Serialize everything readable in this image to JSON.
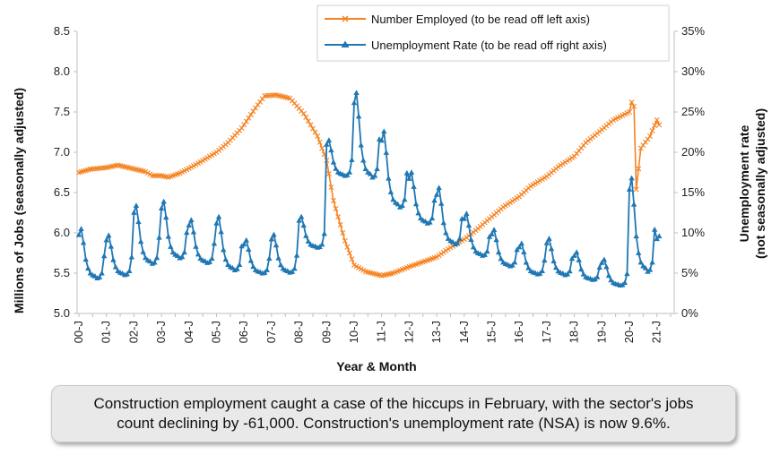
{
  "chart_data": {
    "type": "line",
    "xlabel": "Year & Month",
    "ylabel_left": "Millions of Jobs (seasonally adjusted)",
    "ylabel_right_line1": "Unemployment rate",
    "ylabel_right_line2": "(not seasonally adjusted)",
    "ylim_left": [
      5.0,
      8.5
    ],
    "ylim_right": [
      0,
      35
    ],
    "yticks_left": [
      "8.5",
      "8.0",
      "7.5",
      "7.0",
      "6.5",
      "6.0",
      "5.5",
      "5.0"
    ],
    "yticks_right": [
      "35%",
      "30%",
      "25%",
      "20%",
      "15%",
      "10%",
      "5%",
      "0%"
    ],
    "x_start": "2000-01",
    "x_end": "2021-02",
    "xtick_labels": [
      "00-J",
      "01-J",
      "02-J",
      "03-J",
      "04-J",
      "05-J",
      "06-J",
      "07-J",
      "08-J",
      "09-J",
      "10-J",
      "11-J",
      "12-J",
      "13-J",
      "14-J",
      "15-J",
      "16-J",
      "17-J",
      "18-J",
      "19-J",
      "20-J",
      "21-J"
    ],
    "grid": false,
    "legend_position": "top-center",
    "series": [
      {
        "name": "Number Employed (to be read off left axis)",
        "axis": "left",
        "color": "#F58220",
        "marker": "x",
        "anchors": [
          [
            "2000-01",
            6.75
          ],
          [
            "2000-06",
            6.79
          ],
          [
            "2001-01",
            6.81
          ],
          [
            "2001-06",
            6.84
          ],
          [
            "2001-12",
            6.8
          ],
          [
            "2002-06",
            6.76
          ],
          [
            "2002-09",
            6.71
          ],
          [
            "2003-01",
            6.71
          ],
          [
            "2003-04",
            6.69
          ],
          [
            "2003-09",
            6.74
          ],
          [
            "2004-01",
            6.8
          ],
          [
            "2004-06",
            6.88
          ],
          [
            "2005-01",
            7.0
          ],
          [
            "2005-06",
            7.12
          ],
          [
            "2005-12",
            7.3
          ],
          [
            "2006-06",
            7.55
          ],
          [
            "2006-10",
            7.7
          ],
          [
            "2007-03",
            7.71
          ],
          [
            "2007-09",
            7.67
          ],
          [
            "2008-03",
            7.48
          ],
          [
            "2008-09",
            7.2
          ],
          [
            "2009-01",
            6.9
          ],
          [
            "2009-04",
            6.4
          ],
          [
            "2009-09",
            5.9
          ],
          [
            "2010-01",
            5.6
          ],
          [
            "2010-06",
            5.52
          ],
          [
            "2011-01",
            5.47
          ],
          [
            "2011-06",
            5.5
          ],
          [
            "2012-01",
            5.58
          ],
          [
            "2012-06",
            5.63
          ],
          [
            "2013-01",
            5.7
          ],
          [
            "2013-06",
            5.8
          ],
          [
            "2014-01",
            5.92
          ],
          [
            "2014-06",
            6.03
          ],
          [
            "2015-01",
            6.2
          ],
          [
            "2015-06",
            6.32
          ],
          [
            "2016-01",
            6.45
          ],
          [
            "2016-06",
            6.58
          ],
          [
            "2017-01",
            6.7
          ],
          [
            "2017-06",
            6.82
          ],
          [
            "2018-01",
            6.95
          ],
          [
            "2018-06",
            7.12
          ],
          [
            "2019-01",
            7.28
          ],
          [
            "2019-06",
            7.4
          ],
          [
            "2020-01",
            7.5
          ],
          [
            "2020-02",
            7.62
          ],
          [
            "2020-03",
            7.57
          ],
          [
            "2020-04",
            6.54
          ],
          [
            "2020-06",
            7.05
          ],
          [
            "2020-10",
            7.2
          ],
          [
            "2021-01",
            7.4
          ],
          [
            "2021-02",
            7.34
          ]
        ]
      },
      {
        "name": "Unemployment Rate (to be read off right axis)",
        "axis": "right",
        "color": "#1F77B4",
        "marker": "triangle",
        "annual_peak": [
          10.5,
          9.7,
          13.4,
          13.9,
          11.6,
          12.0,
          9.1,
          9.8,
          12.0,
          21.5,
          27.4,
          22.6,
          17.5,
          15.6,
          12.4,
          10.4,
          8.7,
          9.3,
          7.6,
          6.7,
          16.8,
          9.6
        ],
        "annual_trough": [
          4.4,
          4.8,
          6.2,
          6.9,
          6.3,
          5.4,
          5.0,
          5.1,
          8.2,
          17.1,
          16.9,
          13.2,
          11.2,
          8.6,
          7.2,
          5.9,
          4.9,
          4.8,
          4.2,
          3.5,
          5.2,
          6.9
        ],
        "final_value": 9.6
      }
    ]
  },
  "caption": {
    "line1": "Construction employment caught a case of the hiccups in February, with the sector's jobs",
    "line2": "count declining by -61,000. Construction's unemployment rate (NSA) is now 9.6%."
  }
}
